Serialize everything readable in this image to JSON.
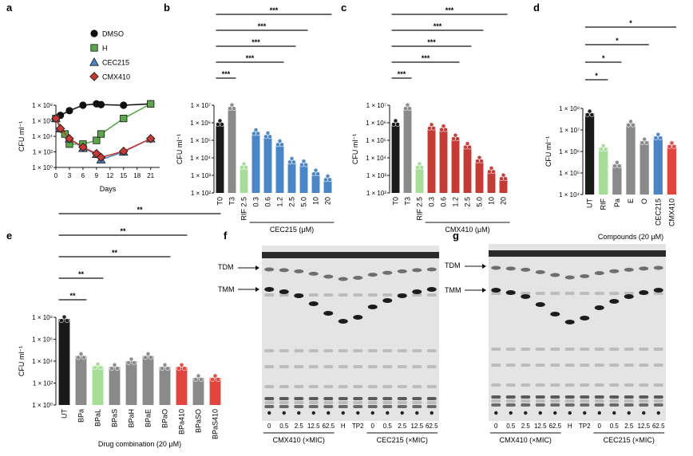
{
  "panels": {
    "a": "a",
    "b": "b",
    "c": "c",
    "d": "d",
    "e": "e",
    "f": "f",
    "g": "g"
  },
  "tlc": {
    "tdm": "TDM",
    "tmm": "TMM",
    "lanes": [
      "0",
      "0.5",
      "2.5",
      "12.5",
      "62.5",
      "H",
      "TP2",
      "0",
      "0.5",
      "2.5",
      "12.5",
      "62.5"
    ],
    "group_left": "CMX410 (×MIC)",
    "group_right": "CEC215 (×MIC)"
  },
  "colors": {
    "dmso": "#111111",
    "h": "#5aa84a",
    "cec215": "#4a86c5",
    "cmx410": "#c43a34",
    "grey": "#8a8a8a",
    "lightgreen": "#a6dd98",
    "black": "#1a1a1a"
  },
  "chart_data": [
    {
      "panel": "a",
      "type": "line",
      "xlabel": "Days",
      "ylabel": "CFU ml⁻¹",
      "log_y": true,
      "ylim": [
        1,
        100000000
      ],
      "xlim": [
        0,
        23
      ],
      "x_ticks": [
        "0",
        "3",
        "6",
        "9",
        "12",
        "15",
        "18",
        "21"
      ],
      "y_ticks": [
        "1 × 10⁰",
        "1 × 10²",
        "1 × 10⁴",
        "1 × 10⁶",
        "1 × 10⁸"
      ],
      "legend_position": "top",
      "series": [
        {
          "name": "DMSO",
          "color": "#111111",
          "marker": "circle",
          "points": [
            [
              0,
              2000000
            ],
            [
              1,
              5000000
            ],
            [
              3,
              20000000
            ],
            [
              6,
              100000000
            ],
            [
              9,
              150000000
            ],
            [
              10,
              120000000
            ],
            [
              15,
              100000000
            ],
            [
              21,
              150000000
            ]
          ]
        },
        {
          "name": "H",
          "color": "#5aa84a",
          "marker": "square",
          "points": [
            [
              0,
              2000000
            ],
            [
              2,
              20000
            ],
            [
              3,
              1000
            ],
            [
              6,
              1000
            ],
            [
              9,
              3000
            ],
            [
              10,
              20000
            ],
            [
              15,
              2000000
            ],
            [
              21,
              150000000
            ]
          ]
        },
        {
          "name": "CEC215",
          "color": "#4a86c5",
          "marker": "triangle",
          "points": [
            [
              0,
              2000000
            ],
            [
              1,
              100000
            ],
            [
              3,
              5000
            ],
            [
              6,
              300
            ],
            [
              9,
              50
            ],
            [
              10,
              10
            ],
            [
              15,
              100
            ],
            [
              21,
              5000
            ]
          ]
        },
        {
          "name": "CMX410",
          "color": "#c43a34",
          "marker": "diamond",
          "points": [
            [
              0,
              2000000
            ],
            [
              1,
              100000
            ],
            [
              3,
              5000
            ],
            [
              6,
              400
            ],
            [
              9,
              60
            ],
            [
              10,
              20
            ],
            [
              15,
              120
            ],
            [
              21,
              5000
            ]
          ]
        }
      ]
    },
    {
      "panel": "b",
      "type": "bar",
      "log_y": true,
      "ylim": [
        100,
        10000000
      ],
      "ylabel": "CFU ml⁻¹",
      "y_ticks": [
        "1 × 10²",
        "1 × 10³",
        "1 × 10⁴",
        "1 × 10⁵",
        "1 × 10⁶",
        "1 × 10⁷"
      ],
      "categories": [
        "T0",
        "T3",
        "RIF 2.5",
        "0.3",
        "0.6",
        "1.2",
        "2.5",
        "5.0",
        "10",
        "20"
      ],
      "values": [
        1000000,
        8000000,
        3500,
        300000,
        200000,
        70000,
        7000,
        5000,
        1500,
        700
      ],
      "bar_colors": [
        "#1a1a1a",
        "#8a8a8a",
        "#a6dd98",
        "#4a86c5",
        "#4a86c5",
        "#4a86c5",
        "#4a86c5",
        "#4a86c5",
        "#4a86c5",
        "#4a86c5"
      ],
      "group_label": "CEC215 (μM)",
      "significance": [
        "***",
        "***",
        "***",
        "***",
        "***"
      ]
    },
    {
      "panel": "c",
      "type": "bar",
      "log_y": true,
      "ylim": [
        100,
        10000000
      ],
      "ylabel": "CFU ml⁻¹",
      "y_ticks": [
        "1 × 10²",
        "1 × 10³",
        "1 × 10⁴",
        "1 × 10⁵",
        "1 × 10⁶",
        "1 × 10⁷"
      ],
      "categories": [
        "T0",
        "T3",
        "RIF 2.5",
        "0.3",
        "0.6",
        "1.2",
        "2.5",
        "5.0",
        "10",
        "20"
      ],
      "values": [
        1000000,
        8000000,
        3500,
        600000,
        500000,
        150000,
        50000,
        8000,
        2000,
        800
      ],
      "bar_colors": [
        "#1a1a1a",
        "#8a8a8a",
        "#a6dd98",
        "#c43a34",
        "#c43a34",
        "#c43a34",
        "#c43a34",
        "#c43a34",
        "#c43a34",
        "#c43a34"
      ],
      "group_label": "CMX410 (μM)",
      "significance": [
        "***",
        "***",
        "***",
        "***",
        "***"
      ]
    },
    {
      "panel": "d",
      "type": "bar",
      "log_y": true,
      "ylim": [
        10000,
        100000000
      ],
      "ylabel": "CFU ml⁻¹",
      "y_ticks": [
        "1 × 10⁴",
        "1 × 10⁵",
        "1 × 10⁶",
        "1 × 10⁷",
        "1 × 10⁸"
      ],
      "categories": [
        "UT",
        "RIF",
        "Pa",
        "E",
        "O",
        "CEC215",
        "CMX410"
      ],
      "values": [
        60000000,
        1500000,
        250000,
        20000000,
        3000000,
        5000000,
        2000000
      ],
      "bar_colors": [
        "#1a1a1a",
        "#a6dd98",
        "#8a8a8a",
        "#8a8a8a",
        "#8a8a8a",
        "#4a86c5",
        "#e2443e"
      ],
      "xlabel": "Compounds (20 μM)",
      "significance": [
        "*",
        "*",
        "*",
        "*"
      ]
    },
    {
      "panel": "e",
      "type": "bar",
      "log_y": true,
      "ylim": [
        1,
        100000000
      ],
      "ylabel": "CFU ml⁻¹",
      "y_ticks": [
        "1 × 10⁰",
        "1 × 10²",
        "1 × 10⁴",
        "1 × 10⁶",
        "1 × 10⁸"
      ],
      "categories": [
        "UT",
        "BPa",
        "BPaL",
        "BPaS",
        "BPaH",
        "BPaE",
        "BPaO",
        "BPa410",
        "BPaSO",
        "BPaS410"
      ],
      "values": [
        70000000,
        30000,
        3500,
        3000,
        10000,
        30000,
        3000,
        3000,
        300,
        300
      ],
      "bar_colors": [
        "#1a1a1a",
        "#8a8a8a",
        "#a6dd98",
        "#8a8a8a",
        "#8a8a8a",
        "#8a8a8a",
        "#8a8a8a",
        "#e2443e",
        "#8a8a8a",
        "#e2443e"
      ],
      "xlabel": "Drug combination (20 μM)",
      "significance": [
        "**",
        "**",
        "**",
        "**",
        "**"
      ]
    }
  ]
}
